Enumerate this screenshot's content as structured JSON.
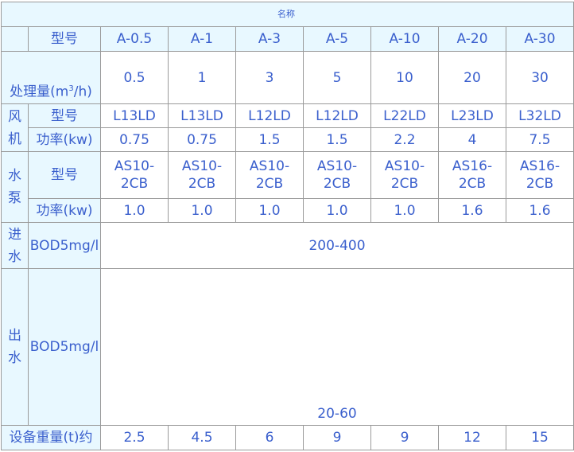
{
  "title": "名称",
  "labels": {
    "model": "型号",
    "capacity": "处理量(m",
    "capacity_sup": "3",
    "capacity_unit": "/h)",
    "fan": "风机",
    "fan_model": "型号",
    "fan_power": "功率(kw)",
    "pump": "水泵",
    "pump_model": "型号",
    "pump_power": "功率(kw)",
    "inlet": "进水",
    "inlet_bod": "BOD5mg/l",
    "outlet": "出水",
    "outlet_bod": "BOD5mg/l",
    "weight": "设备重量(t)约"
  },
  "models": [
    "A-0.5",
    "A-1",
    "A-3",
    "A-5",
    "A-10",
    "A-20",
    "A-30"
  ],
  "capacity": [
    "0.5",
    "1",
    "3",
    "5",
    "10",
    "20",
    "30"
  ],
  "fan_models": [
    "L13LD",
    "L13LD",
    "L12LD",
    "L12LD",
    "L22LD",
    "L23LD",
    "L32LD"
  ],
  "fan_power": [
    "0.75",
    "0.75",
    "1.5",
    "1.5",
    "2.2",
    "4",
    "7.5"
  ],
  "pump_models": [
    "AS10-2CB",
    "AS10-2CB",
    "AS10-2CB",
    "AS10-2CB",
    "AS10-2CB",
    "AS16-2CB",
    "AS16-2CB"
  ],
  "pump_power": [
    "1.0",
    "1.0",
    "1.0",
    "1.0",
    "1.0",
    "1.6",
    "1.6"
  ],
  "inlet_bod_value": "200-400",
  "outlet_bod_value": "20-60",
  "weight": [
    "2.5",
    "4.5",
    "6",
    "9",
    "9",
    "12",
    "15"
  ],
  "colors": {
    "text": "#3a5fcd",
    "header_bg": "#e8f8ff",
    "border": "#9a9a9a"
  }
}
